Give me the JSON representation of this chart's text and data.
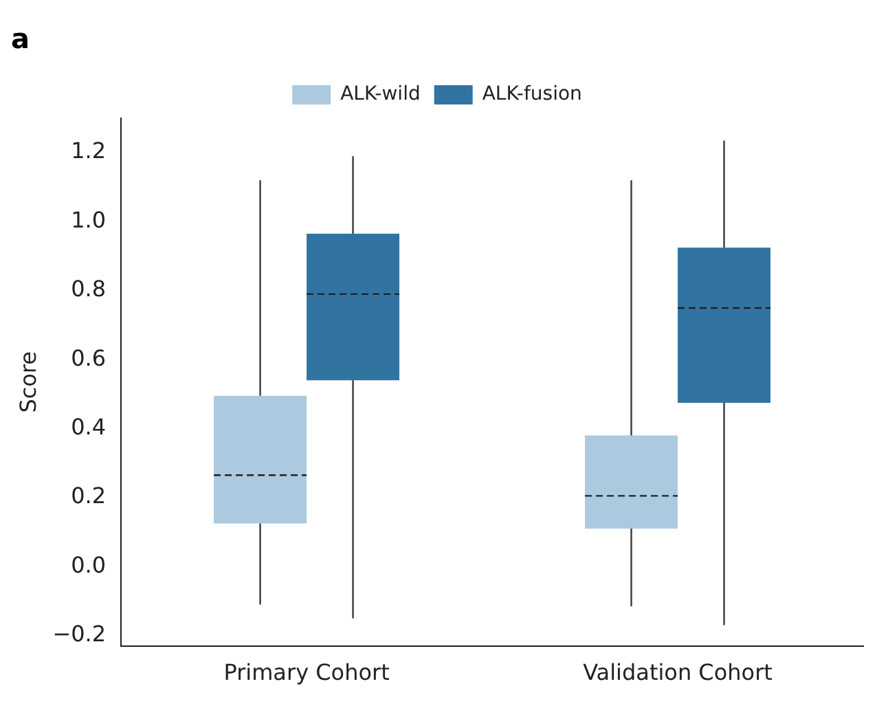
{
  "chart_data": {
    "type": "box",
    "title": "a",
    "ylabel": "Score",
    "categories": [
      "Primary Cohort",
      "Validation Cohort"
    ],
    "series": [
      {
        "name": "ALK-wild",
        "color": "#abcadf",
        "boxes": [
          {
            "low": -0.11,
            "q1": 0.125,
            "median": 0.265,
            "q3": 0.495,
            "high": 1.12
          },
          {
            "low": -0.115,
            "q1": 0.11,
            "median": 0.205,
            "q3": 0.38,
            "high": 1.12
          }
        ]
      },
      {
        "name": "ALK-fusion",
        "color": "#3274a1",
        "boxes": [
          {
            "low": -0.15,
            "q1": 0.54,
            "median": 0.79,
            "q3": 0.965,
            "high": 1.19
          },
          {
            "low": -0.17,
            "q1": 0.475,
            "median": 0.75,
            "q3": 0.925,
            "high": 1.235
          }
        ]
      }
    ],
    "ylim": [
      -0.23,
      1.3
    ],
    "yticks": [
      {
        "value": -0.2,
        "label": "−0.2"
      },
      {
        "value": 0,
        "label": "0.0"
      },
      {
        "value": 0.2,
        "label": "0.2"
      },
      {
        "value": 0.4,
        "label": "0.4"
      },
      {
        "value": 0.6,
        "label": "0.6"
      },
      {
        "value": 0.8,
        "label": "0.8"
      },
      {
        "value": 1,
        "label": "1.0"
      },
      {
        "value": 1.2,
        "label": "1.2"
      }
    ],
    "grid": false,
    "legend": "top",
    "line_style": "dashed"
  }
}
